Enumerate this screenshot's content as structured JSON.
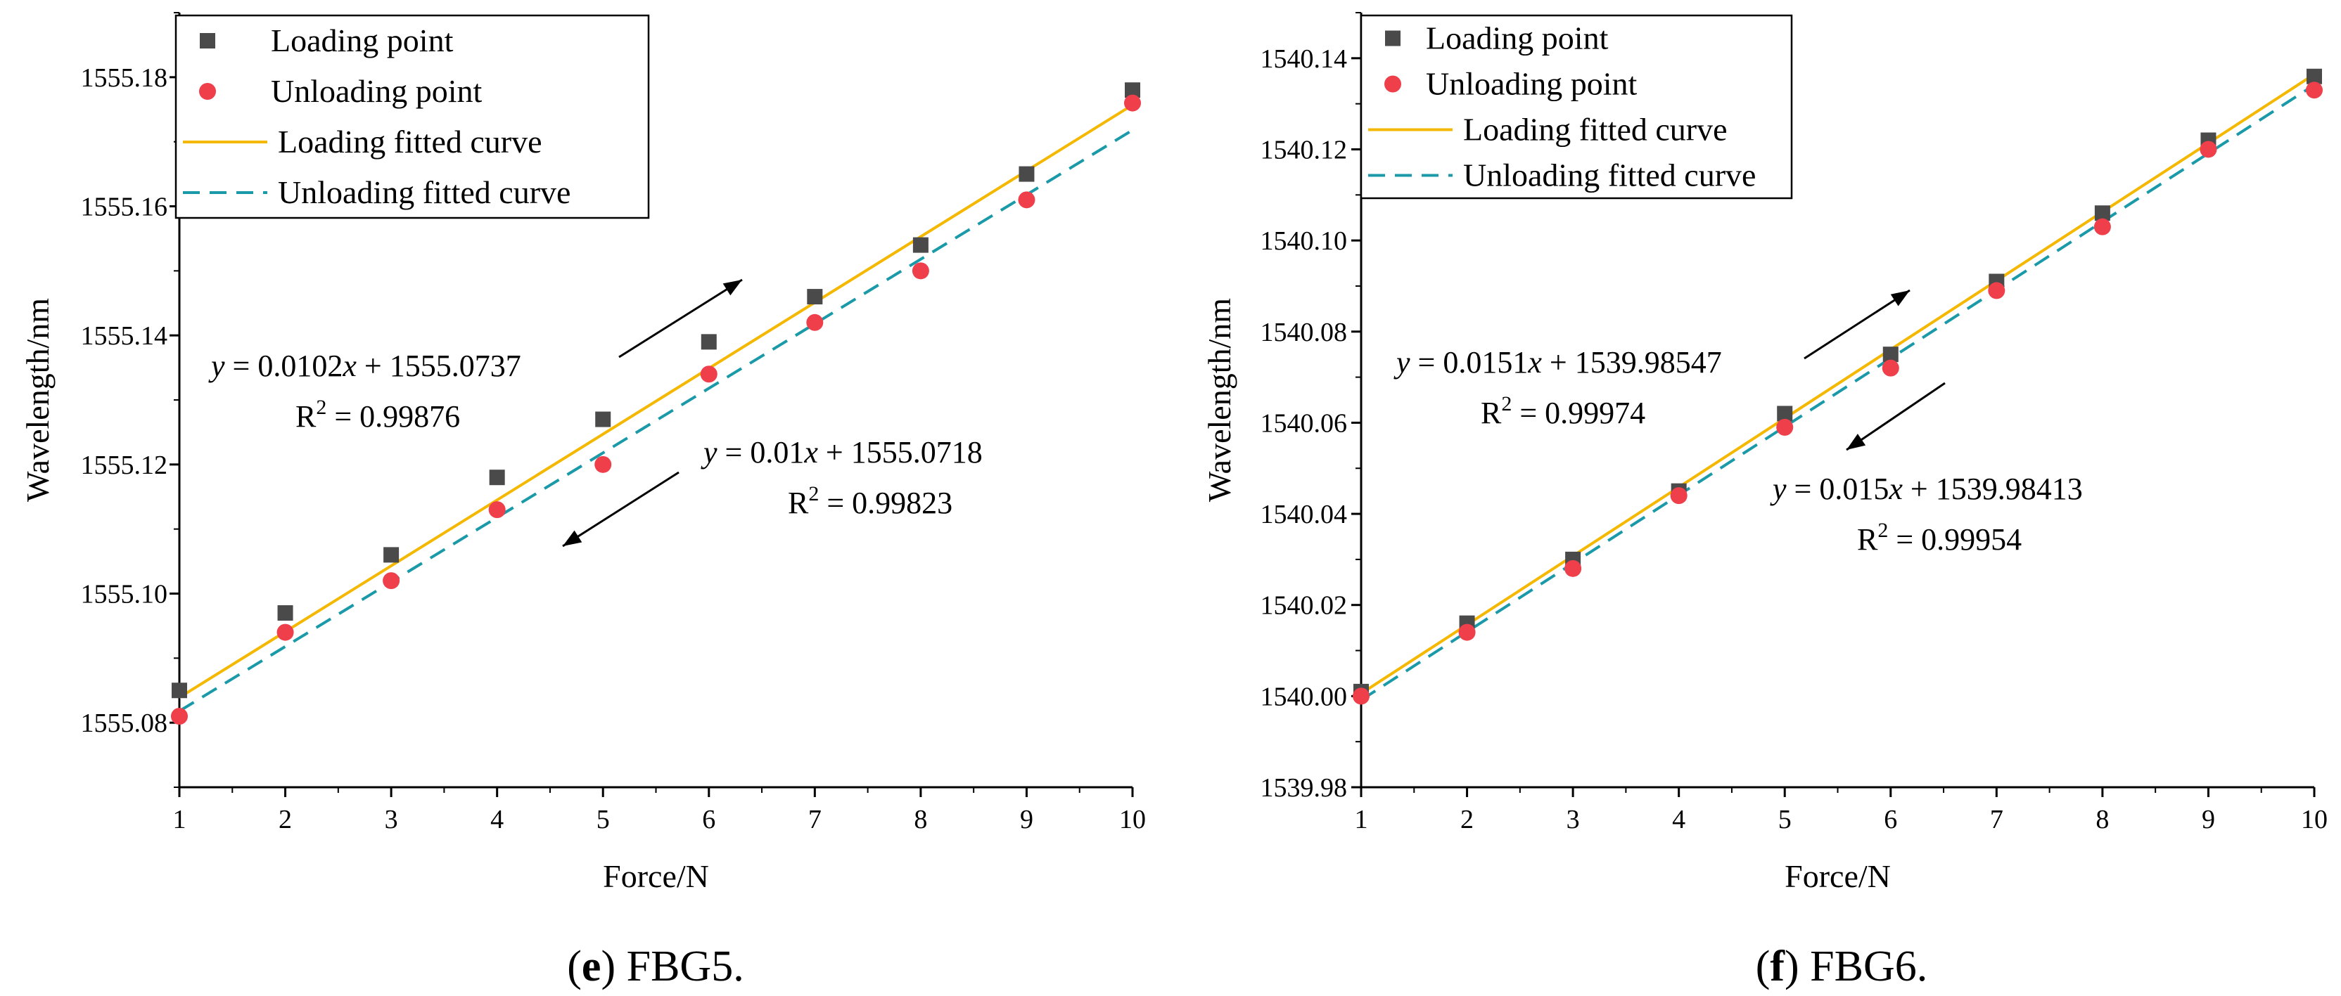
{
  "chart_data": [
    {
      "type": "scatter",
      "panel_letter": "e",
      "caption": "FBG5.",
      "xlabel": "Force/N",
      "ylabel": "Wavelength/nm",
      "xlim": [
        1,
        10
      ],
      "ylim": [
        1555.07,
        1555.19
      ],
      "x_ticks": [
        "1",
        "2",
        "3",
        "4",
        "5",
        "6",
        "7",
        "8",
        "9",
        "10"
      ],
      "y_ticks": [
        "1555.08",
        "1555.10",
        "1555.12",
        "1555.14",
        "1555.16",
        "1555.18"
      ],
      "y_tick_values": [
        1555.08,
        1555.1,
        1555.12,
        1555.14,
        1555.16,
        1555.18
      ],
      "x": [
        1,
        2,
        3,
        4,
        5,
        6,
        7,
        8,
        9,
        10
      ],
      "series": [
        {
          "name": "Loading point",
          "marker": "square",
          "color": "#4a4a4a",
          "values": [
            1555.085,
            1555.097,
            1555.106,
            1555.118,
            1555.127,
            1555.139,
            1555.146,
            1555.154,
            1555.165,
            1555.178
          ]
        },
        {
          "name": "Unloading point",
          "marker": "circle",
          "color": "#ee3f4a",
          "values": [
            1555.081,
            1555.094,
            1555.102,
            1555.113,
            1555.12,
            1555.134,
            1555.142,
            1555.15,
            1555.161,
            1555.176
          ]
        }
      ],
      "fits": [
        {
          "name": "Loading fitted curve",
          "style": "solid",
          "color": "#f5b800",
          "slope": 0.0102,
          "intercept": 1555.0737
        },
        {
          "name": "Unloading fitted curve",
          "style": "dashed",
          "color": "#1a9aa8",
          "slope": 0.01,
          "intercept": 1555.0718
        }
      ],
      "annotations": {
        "loading_eq_y": "y",
        "loading_eq_mid": " = 0.0102",
        "loading_eq_x": "x",
        "loading_eq_rest": " + 1555.0737",
        "loading_r2_label": "R",
        "loading_r2_sup": "2",
        "loading_r2_value": " = 0.99876",
        "unloading_eq_y": "y",
        "unloading_eq_mid": " = 0.01",
        "unloading_eq_x": "x",
        "unloading_eq_rest": " + 1555.0718",
        "unloading_r2_label": "R",
        "unloading_r2_sup": "2",
        "unloading_r2_value": " = 0.99823"
      },
      "legend_position": "top-left"
    },
    {
      "type": "scatter",
      "panel_letter": "f",
      "caption": "FBG6.",
      "xlabel": "Force/N",
      "ylabel": "Wavelength/nm",
      "xlim": [
        1,
        10
      ],
      "ylim": [
        1539.98,
        1540.15
      ],
      "x_ticks": [
        "1",
        "2",
        "3",
        "4",
        "5",
        "6",
        "7",
        "8",
        "9",
        "10"
      ],
      "y_ticks": [
        "1539.98",
        "1540.00",
        "1540.02",
        "1540.04",
        "1540.06",
        "1540.08",
        "1540.10",
        "1540.12",
        "1540.14"
      ],
      "y_tick_values": [
        1539.98,
        1540.0,
        1540.02,
        1540.04,
        1540.06,
        1540.08,
        1540.1,
        1540.12,
        1540.14
      ],
      "x": [
        1,
        2,
        3,
        4,
        5,
        6,
        7,
        8,
        9,
        10
      ],
      "series": [
        {
          "name": "Loading point",
          "marker": "square",
          "color": "#4a4a4a",
          "values": [
            1540.001,
            1540.016,
            1540.03,
            1540.045,
            1540.062,
            1540.075,
            1540.091,
            1540.106,
            1540.122,
            1540.136
          ]
        },
        {
          "name": "Unloading point",
          "marker": "circle",
          "color": "#ee3f4a",
          "values": [
            1540.0,
            1540.014,
            1540.028,
            1540.044,
            1540.059,
            1540.072,
            1540.089,
            1540.103,
            1540.12,
            1540.133
          ]
        }
      ],
      "fits": [
        {
          "name": "Loading fitted curve",
          "style": "solid",
          "color": "#f5b800",
          "slope": 0.0151,
          "intercept": 1539.98547
        },
        {
          "name": "Unloading fitted curve",
          "style": "dashed",
          "color": "#1a9aa8",
          "slope": 0.015,
          "intercept": 1539.98413
        }
      ],
      "annotations": {
        "loading_eq_y": "y",
        "loading_eq_mid": " = 0.0151",
        "loading_eq_x": "x",
        "loading_eq_rest": " + 1539.98547",
        "loading_r2_label": "R",
        "loading_r2_sup": "2",
        "loading_r2_value": " = 0.99974",
        "unloading_eq_y": "y",
        "unloading_eq_mid": " = 0.015",
        "unloading_eq_x": "x",
        "unloading_eq_rest": " + 1539.98413",
        "unloading_r2_label": "R",
        "unloading_r2_sup": "2",
        "unloading_r2_value": " = 0.99954"
      },
      "legend_position": "top-left"
    }
  ]
}
